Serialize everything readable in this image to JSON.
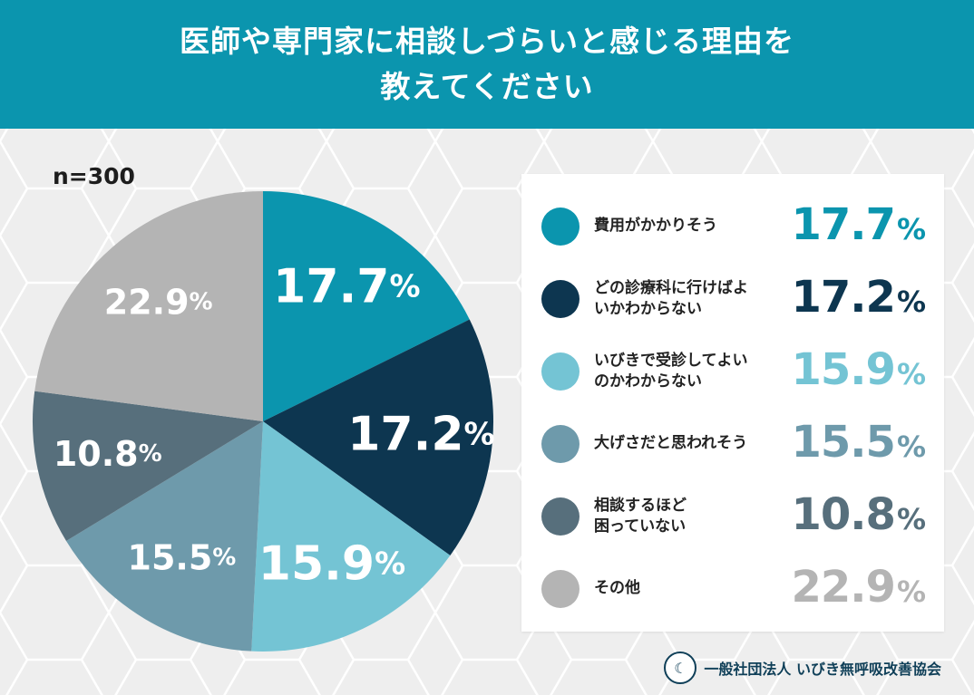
{
  "header": {
    "title_line1": "医師や専門家に相談しづらいと感じる理由を",
    "title_line2": "教えてください"
  },
  "sample_size": "n=300",
  "percent_sign": "%",
  "footer": {
    "org_name": "一般社団法人 いびき無呼吸改善協会",
    "logo_icon": "sleeping-face-logo-icon"
  },
  "chart_data": {
    "type": "pie",
    "title": "医師や専門家に相談しづらいと感じる理由を教えてください",
    "n": 300,
    "unit": "%",
    "slices": [
      {
        "label": "費用がかかりそう",
        "value": 17.7,
        "color": "#0b95ae",
        "label_color": "#0b95ae"
      },
      {
        "label": "どの診療科に行けばよ\nいかわからない",
        "value": 17.2,
        "color": "#0d3650",
        "label_color": "#0d3650"
      },
      {
        "label": "いびきで受診してよい\nのかわからない",
        "value": 15.9,
        "color": "#74c4d4",
        "label_color": "#74c4d4"
      },
      {
        "label": "大げさだと思われそう",
        "value": 15.5,
        "color": "#6e9aab",
        "label_color": "#6e9aab"
      },
      {
        "label": "相談するほど\n困っていない",
        "value": 10.8,
        "color": "#576f7c",
        "label_color": "#576f7c"
      },
      {
        "label": "その他",
        "value": 22.9,
        "color": "#b4b4b4",
        "label_color": "#b4b4b4"
      }
    ]
  }
}
